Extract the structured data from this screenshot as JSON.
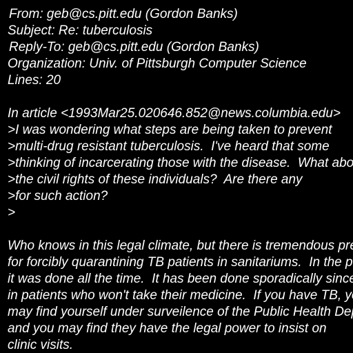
{
  "colors": {
    "background": "#000000",
    "text": "#ffffff"
  },
  "header": {
    "from": "From: geb@cs.pitt.edu (Gordon Banks)",
    "subject": "Subject: Re: tuberculosis",
    "reply_to": "Reply-To: geb@cs.pitt.edu (Gordon Banks)",
    "organization": "Organization: Univ. of Pittsburgh Computer Science",
    "lines": "Lines: 20"
  },
  "quote": {
    "attribution": "In article <1993Mar25.020646.852@news.columbia.edu>",
    "lines": [
      ">I was wondering what steps are being taken to prevent",
      ">multi-drug resistant tuberculosis.  I've heard that some",
      ">thinking of incarcerating those with the disease.  What about",
      ">the civil rights of these individuals?  Are there any",
      ">for such action?",
      ">"
    ]
  },
  "reply": {
    "lines": [
      "Who knows in this legal climate, but there is tremendous precedent",
      "for forcibly quarantining TB patients in sanitariums.  In the past",
      "it was done all the time.  It has been done sporadically since",
      "in patients who won't take their medicine.  If you have TB, you",
      "may find yourself under surveilence of the Public Health Department,",
      "and you may find they have the legal power to insist on",
      "clinic visits."
    ]
  }
}
